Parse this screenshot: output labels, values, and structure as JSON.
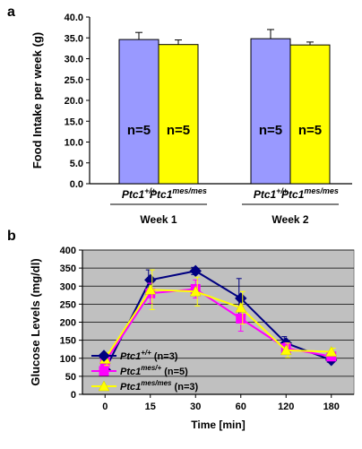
{
  "panel_labels": [
    "a",
    "b"
  ],
  "chart_data": [
    {
      "type": "bar",
      "panel": "a",
      "ylabel": "Food Intake per week (g)",
      "ylim": [
        0,
        40
      ],
      "yticks": [
        "0.0",
        "5.0",
        "10.0",
        "15.0",
        "20.0",
        "25.0",
        "30.0",
        "35.0",
        "40.0"
      ],
      "groups": [
        {
          "label": "Week 1",
          "bars": [
            {
              "base": "Ptc1",
              "sup": "+/+",
              "value": 34.6,
              "error": 1.7,
              "n_label": "n=5",
              "color": "#9999ff"
            },
            {
              "base": "Ptc1",
              "sup": "mes/mes",
              "value": 33.4,
              "error": 1.1,
              "n_label": "n=5",
              "color": "#ffff00"
            }
          ]
        },
        {
          "label": "Week 2",
          "bars": [
            {
              "base": "Ptc1",
              "sup": "+/+",
              "value": 34.8,
              "error": 2.2,
              "n_label": "n=5",
              "color": "#9999ff"
            },
            {
              "base": "Ptc1",
              "sup": "mes/mes",
              "value": 33.3,
              "error": 0.7,
              "n_label": "n=5",
              "color": "#ffff00"
            }
          ]
        }
      ],
      "grid": false
    },
    {
      "type": "line",
      "panel": "b",
      "xlabel": "Time [min]",
      "ylabel": "Glucose Levels (mg/dl)",
      "ylim": [
        0,
        400
      ],
      "yticks": [
        "0",
        "50",
        "100",
        "150",
        "200",
        "250",
        "300",
        "350",
        "400"
      ],
      "categories": [
        "0",
        "15",
        "30",
        "60",
        "120",
        "180"
      ],
      "plot_background": "#c0c0c0",
      "grid": true,
      "legend_position": "bottom-left",
      "series": [
        {
          "name_base": "Ptc1",
          "name_sup": "+/+",
          "name_suffix": " (n=3)",
          "color": "#000080",
          "marker": "diamond",
          "values": [
            68,
            317,
            342,
            266,
            142,
            95
          ],
          "errors": [
            12,
            28,
            10,
            55,
            18,
            6
          ]
        },
        {
          "name_base": "Ptc1",
          "name_sup": "mes/+",
          "name_suffix": " (n=5)",
          "color": "#ff00ff",
          "marker": "square",
          "values": [
            90,
            280,
            292,
            210,
            128,
            105
          ],
          "errors": [
            15,
            28,
            25,
            35,
            15,
            8
          ]
        },
        {
          "name_base": "Ptc1",
          "name_sup": "mes/mes",
          "name_suffix": " (n=3)",
          "color": "#ffff00",
          "marker": "triangle",
          "values": [
            98,
            290,
            285,
            240,
            122,
            118
          ],
          "errors": [
            18,
            55,
            40,
            45,
            20,
            10
          ]
        }
      ]
    }
  ]
}
